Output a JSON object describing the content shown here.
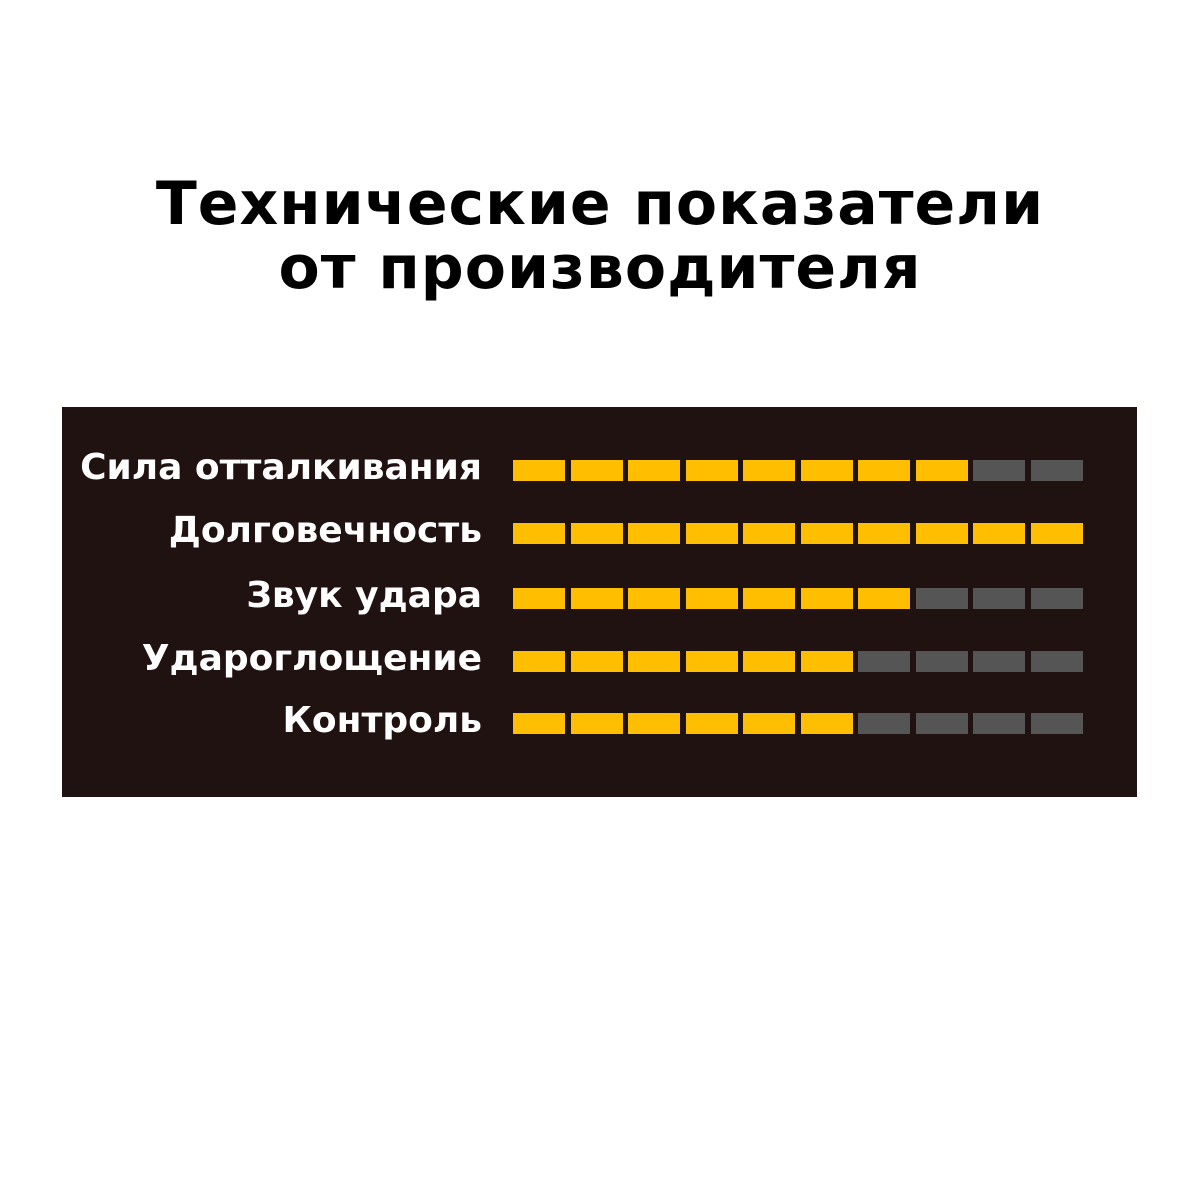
{
  "title_lines": [
    "Технические показатели",
    "от производителя"
  ],
  "chart_data": {
    "type": "bar",
    "categories": [
      "Сила отталкивания",
      "Долговечность",
      "Звук удара",
      "Удароглощение",
      "Контроль"
    ],
    "values": [
      8,
      10,
      7,
      6,
      6
    ],
    "max": 10,
    "colors": {
      "filled": "#FFBE00",
      "empty": "#555555",
      "background": "#1F1210"
    }
  }
}
